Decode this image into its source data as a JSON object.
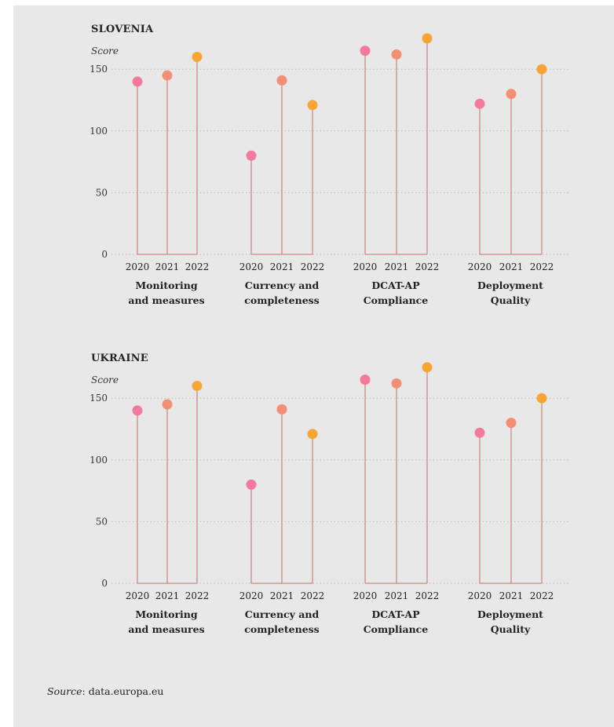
{
  "colors": {
    "y2020": "#f47a9c",
    "y2021": "#f38f74",
    "y2022": "#f9a534",
    "stem": "#c98a83",
    "grid": "#b9b9b9",
    "panel": "#e8e8e8"
  },
  "source": {
    "label": "Source",
    "text": ": data.europa.eu"
  },
  "chart_data": [
    {
      "type": "lollipop",
      "title": "SLOVENIA",
      "ylabel": "Score",
      "ylim": [
        0,
        150
      ],
      "yticks": [
        "0",
        "50",
        "100",
        "150"
      ],
      "grid": true,
      "groups": [
        "Monitoring and measures",
        "Currency and completeness",
        "DCAT-AP Compliance",
        "Deployment Quality"
      ],
      "group_labels": [
        [
          "Monitoring",
          "and measures"
        ],
        [
          "Currency and",
          "completeness"
        ],
        [
          "DCAT-AP",
          "Compliance"
        ],
        [
          "Deployment",
          "Quality"
        ]
      ],
      "years": [
        "2020",
        "2021",
        "2022"
      ],
      "values": [
        [
          140,
          145,
          160
        ],
        [
          80,
          141,
          121
        ],
        [
          165,
          162,
          175
        ],
        [
          122,
          130,
          150
        ]
      ]
    },
    {
      "type": "lollipop",
      "title": "UKRAINE",
      "ylabel": "Score",
      "ylim": [
        0,
        150
      ],
      "yticks": [
        "0",
        "50",
        "100",
        "150"
      ],
      "grid": true,
      "groups": [
        "Monitoring and measures",
        "Currency and completeness",
        "DCAT-AP Compliance",
        "Deployment Quality"
      ],
      "group_labels": [
        [
          "Monitoring",
          "and measures"
        ],
        [
          "Currency and",
          "completeness"
        ],
        [
          "DCAT-AP",
          "Compliance"
        ],
        [
          "Deployment",
          "Quality"
        ]
      ],
      "years": [
        "2020",
        "2021",
        "2022"
      ],
      "values": [
        [
          140,
          145,
          160
        ],
        [
          80,
          141,
          121
        ],
        [
          165,
          162,
          175
        ],
        [
          122,
          130,
          150
        ]
      ]
    }
  ]
}
